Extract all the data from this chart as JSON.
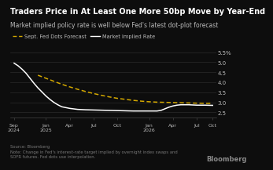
{
  "title": "Traders Price in At Least One More 50bp Move by Year-End",
  "subtitle": "Market implied policy rate is well below Fed's latest dot-plot forecast",
  "title_fontsize": 7.0,
  "subtitle_fontsize": 5.5,
  "background_color": "#0d0d0d",
  "text_color": "#bbbbbb",
  "grid_color": "#2a2a2a",
  "source_text": "Source: Bloomberg\nNote: Change in Fed's interest-rate target implied by overnight index swaps and\nSOFR futures. Fed dots use interpolation.",
  "bloomberg_text": "Bloomberg",
  "legend_labels": [
    "Sept. Fed Dots Forecast",
    "Market Implied Rate"
  ],
  "ylim": [
    2.25,
    5.75
  ],
  "yticks": [
    2.5,
    3.0,
    3.5,
    4.0,
    4.5,
    5.0,
    5.5
  ],
  "ytick_labels": [
    "2.5",
    "3.0",
    "3.5",
    "4.0",
    "4.5",
    "5.0",
    "5.5%"
  ],
  "market_implied_x": [
    0,
    0.5,
    1,
    1.5,
    2,
    2.5,
    3,
    3.5,
    4,
    4.5,
    5,
    5.5,
    6,
    7,
    8,
    9,
    10,
    11,
    12,
    13,
    14,
    15,
    16,
    17,
    18,
    18.5,
    19,
    19.5,
    20,
    20.5,
    21,
    21.5,
    22,
    22.5,
    23,
    24,
    25
  ],
  "market_implied_y": [
    4.95,
    4.82,
    4.65,
    4.45,
    4.2,
    3.95,
    3.72,
    3.52,
    3.32,
    3.15,
    3.0,
    2.88,
    2.78,
    2.7,
    2.65,
    2.63,
    2.62,
    2.61,
    2.6,
    2.59,
    2.58,
    2.57,
    2.57,
    2.57,
    2.57,
    2.6,
    2.68,
    2.76,
    2.82,
    2.86,
    2.88,
    2.88,
    2.88,
    2.87,
    2.86,
    2.86,
    2.85
  ],
  "fed_dots_x": [
    3,
    4,
    5,
    6,
    7,
    8,
    9,
    10,
    11,
    12,
    13,
    14,
    15,
    16,
    17,
    18,
    19,
    20,
    21,
    22,
    23,
    24,
    25
  ],
  "fed_dots_y": [
    4.35,
    4.2,
    4.05,
    3.9,
    3.77,
    3.65,
    3.54,
    3.44,
    3.35,
    3.27,
    3.2,
    3.15,
    3.1,
    3.06,
    3.03,
    3.01,
    3.0,
    2.99,
    2.98,
    2.97,
    2.96,
    2.95,
    2.95
  ],
  "market_color": "#ffffff",
  "fed_dots_color": "#d4a800",
  "xtick_positions": [
    0,
    4,
    7,
    10,
    13,
    17,
    20,
    23,
    25
  ],
  "xtick_labels": [
    "Sep\n2024",
    "Jan\n2025",
    "Apr",
    "Jul",
    "Oct",
    "Jan\n2026",
    "Apr",
    "Jul",
    "Oct"
  ]
}
